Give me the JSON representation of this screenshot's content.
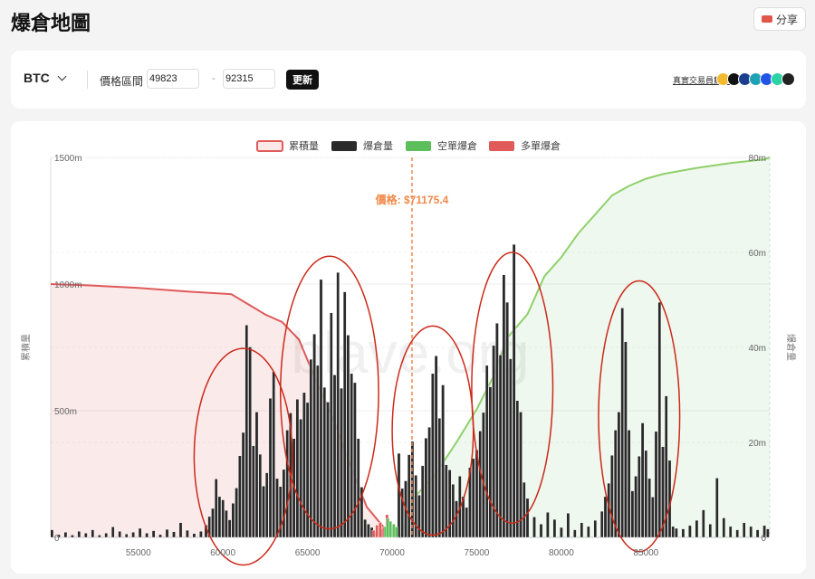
{
  "header": {
    "title": "爆倉地圖",
    "share_label": "分享"
  },
  "controls": {
    "asset": "BTC",
    "range_label": "價格區間",
    "range_low": "49823",
    "range_high": "92315",
    "separator": "-",
    "update_label": "更新",
    "real_data_label": "真實交易員數據",
    "exchanges": [
      {
        "name": "binance-icon",
        "color": "#f3ba2f"
      },
      {
        "name": "okx-icon",
        "color": "#111111"
      },
      {
        "name": "bybit-icon",
        "color": "#1b3f8f"
      },
      {
        "name": "bitget-icon",
        "color": "#1da2b4"
      },
      {
        "name": "gate-icon",
        "color": "#2354e6"
      },
      {
        "name": "hyperliquid-icon",
        "color": "#2bd2a4"
      },
      {
        "name": "bitmex-icon",
        "color": "#222222"
      }
    ]
  },
  "colors": {
    "cumulative": "#e05a5a",
    "liquidation": "#2a2a2a",
    "short": "#5cbf5c",
    "long": "#e05a5a",
    "price": "#f08a4b",
    "annotation": "#cc2a1a"
  },
  "chart_data": {
    "type": "bar",
    "legend": [
      "累積量",
      "爆倉量",
      "空單爆倉",
      "多單爆倉"
    ],
    "legend_position": "top-center",
    "xlim": [
      49823,
      92315
    ],
    "x_ticks": [
      55000,
      60000,
      65000,
      70000,
      75000,
      80000,
      85000
    ],
    "left_axis": {
      "label": "累積量",
      "ylim": [
        0,
        1500
      ],
      "ticks": [
        0,
        500,
        1000,
        1500
      ],
      "tick_labels": [
        "0",
        "500m",
        "1000m",
        "1500m"
      ]
    },
    "right_axis": {
      "label": "爆倉量",
      "ylim": [
        0,
        80
      ],
      "ticks": [
        0,
        20,
        40,
        60,
        80
      ],
      "tick_labels": [
        "0",
        "20m",
        "40m",
        "60m",
        "80m"
      ]
    },
    "current_price": 71175.4,
    "price_label": "價格: $71175.4",
    "watermark": "blave.org",
    "cumulative_long": [
      [
        49823,
        1000
      ],
      [
        52000,
        995
      ],
      [
        55000,
        985
      ],
      [
        58000,
        970
      ],
      [
        60500,
        960
      ],
      [
        61500,
        920
      ],
      [
        62500,
        880
      ],
      [
        63500,
        850
      ],
      [
        64500,
        780
      ],
      [
        65500,
        620
      ],
      [
        66500,
        470
      ],
      [
        67500,
        290
      ],
      [
        68500,
        120
      ],
      [
        69500,
        40
      ],
      [
        70300,
        8
      ],
      [
        70500,
        0
      ]
    ],
    "cumulative_short": [
      [
        70500,
        0
      ],
      [
        71200,
        8
      ],
      [
        72500,
        13
      ],
      [
        73800,
        20
      ],
      [
        75000,
        27
      ],
      [
        76000,
        34
      ],
      [
        76800,
        42
      ],
      [
        78000,
        47
      ],
      [
        79000,
        55
      ],
      [
        80000,
        59
      ],
      [
        81000,
        64
      ],
      [
        82000,
        68
      ],
      [
        83000,
        72
      ],
      [
        84000,
        74
      ],
      [
        85000,
        75.5
      ],
      [
        86000,
        76.5
      ],
      [
        88000,
        77.8
      ],
      [
        90000,
        78.8
      ],
      [
        92000,
        79.6
      ],
      [
        92315,
        80
      ]
    ],
    "liquidation_bars": [
      [
        49900,
        1.6
      ],
      [
        50300,
        0.6
      ],
      [
        50700,
        1.1
      ],
      [
        51100,
        0.5
      ],
      [
        51500,
        1.3
      ],
      [
        51900,
        0.9
      ],
      [
        52300,
        1.6
      ],
      [
        52700,
        0.5
      ],
      [
        53100,
        0.9
      ],
      [
        53500,
        2.2
      ],
      [
        53900,
        1.3
      ],
      [
        54300,
        0.7
      ],
      [
        54700,
        1.1
      ],
      [
        55100,
        1.9
      ],
      [
        55500,
        0.9
      ],
      [
        55900,
        1.4
      ],
      [
        56300,
        0.6
      ],
      [
        56700,
        1.7
      ],
      [
        57100,
        1.2
      ],
      [
        57500,
        3.1
      ],
      [
        57900,
        1.5
      ],
      [
        58300,
        0.8
      ],
      [
        58700,
        1.3
      ],
      [
        59000,
        2.6
      ],
      [
        59200,
        4.4
      ],
      [
        59400,
        6.1
      ],
      [
        59600,
        12.3
      ],
      [
        59800,
        8.6
      ],
      [
        60000,
        7.9
      ],
      [
        60200,
        5.7
      ],
      [
        60400,
        3.7
      ],
      [
        60600,
        7.2
      ],
      [
        60800,
        10.4
      ],
      [
        61000,
        17.2
      ],
      [
        61200,
        22.1
      ],
      [
        61400,
        44.7
      ],
      [
        61600,
        40.1
      ],
      [
        61800,
        19.3
      ],
      [
        62000,
        26.4
      ],
      [
        62200,
        17.5
      ],
      [
        62400,
        10.8
      ],
      [
        62600,
        13.6
      ],
      [
        62800,
        29.3
      ],
      [
        63000,
        34.9
      ],
      [
        63200,
        12.4
      ],
      [
        63400,
        10.7
      ],
      [
        63600,
        14.3
      ],
      [
        63800,
        22.6
      ],
      [
        64000,
        26.2
      ],
      [
        64200,
        20.8
      ],
      [
        64400,
        29.1
      ],
      [
        64600,
        24.9
      ],
      [
        64800,
        30.5
      ],
      [
        65000,
        28.4
      ],
      [
        65200,
        37.5
      ],
      [
        65400,
        42.8
      ],
      [
        65600,
        36.2
      ],
      [
        65800,
        54.3
      ],
      [
        66000,
        31.6
      ],
      [
        66200,
        28.5
      ],
      [
        66400,
        47.3
      ],
      [
        66600,
        34.2
      ],
      [
        66800,
        55.8
      ],
      [
        67000,
        31.4
      ],
      [
        67200,
        51.7
      ],
      [
        67400,
        42.6
      ],
      [
        67600,
        34.5
      ],
      [
        67800,
        32.6
      ],
      [
        68000,
        20.8
      ],
      [
        68200,
        10.6
      ],
      [
        68400,
        3.8
      ],
      [
        68600,
        2.8
      ],
      [
        68800,
        2.1
      ],
      [
        69000,
        1.1
      ],
      [
        69400,
        1.8
      ],
      [
        70400,
        17.7
      ],
      [
        70600,
        10.3
      ],
      [
        70800,
        11.9
      ],
      [
        71000,
        17.4
      ],
      [
        71200,
        20.2
      ],
      [
        71400,
        13.1
      ],
      [
        71600,
        8.9
      ],
      [
        71800,
        15.1
      ],
      [
        72000,
        20.9
      ],
      [
        72200,
        23.2
      ],
      [
        72400,
        34.5
      ],
      [
        72600,
        38.2
      ],
      [
        72800,
        25.1
      ],
      [
        73000,
        32.1
      ],
      [
        73200,
        15.3
      ],
      [
        73400,
        14.2
      ],
      [
        73600,
        11.2
      ],
      [
        73800,
        7.7
      ],
      [
        74000,
        12.9
      ],
      [
        74200,
        8.6
      ],
      [
        74400,
        6.3
      ],
      [
        74600,
        14.7
      ],
      [
        74800,
        16.6
      ],
      [
        75000,
        18.4
      ],
      [
        75200,
        22.4
      ],
      [
        75400,
        26.3
      ],
      [
        75600,
        36.2
      ],
      [
        75800,
        31.7
      ],
      [
        76000,
        40.4
      ],
      [
        76200,
        45.1
      ],
      [
        76400,
        38.4
      ],
      [
        76600,
        55.3
      ],
      [
        76800,
        49.5
      ],
      [
        77000,
        37.6
      ],
      [
        77200,
        61.7
      ],
      [
        77400,
        28.8
      ],
      [
        77600,
        26.4
      ],
      [
        77800,
        11.6
      ],
      [
        78000,
        8.2
      ],
      [
        78400,
        4.3
      ],
      [
        78800,
        2.8
      ],
      [
        79200,
        5.3
      ],
      [
        79600,
        3.8
      ],
      [
        80000,
        2.1
      ],
      [
        80400,
        5.1
      ],
      [
        80800,
        1.6
      ],
      [
        81200,
        3.1
      ],
      [
        81600,
        2.3
      ],
      [
        82000,
        3.6
      ],
      [
        82400,
        5.5
      ],
      [
        82600,
        8.6
      ],
      [
        82800,
        11.4
      ],
      [
        83000,
        17.3
      ],
      [
        83200,
        22.6
      ],
      [
        83400,
        26.4
      ],
      [
        83600,
        48.3
      ],
      [
        83800,
        41.2
      ],
      [
        84000,
        22.6
      ],
      [
        84200,
        9.8
      ],
      [
        84400,
        12.9
      ],
      [
        84600,
        17.1
      ],
      [
        84800,
        24.1
      ],
      [
        85000,
        18.3
      ],
      [
        85200,
        12.4
      ],
      [
        85400,
        8.5
      ],
      [
        85600,
        22.3
      ],
      [
        85800,
        49.5
      ],
      [
        86000,
        19.1
      ],
      [
        86200,
        29.8
      ],
      [
        86400,
        16.2
      ],
      [
        86600,
        2.3
      ],
      [
        86800,
        1.9
      ],
      [
        87200,
        1.8
      ],
      [
        87600,
        2.5
      ],
      [
        88000,
        3.6
      ],
      [
        88400,
        5.8
      ],
      [
        88800,
        2.8
      ],
      [
        89200,
        12.5
      ],
      [
        89600,
        4.1
      ],
      [
        90000,
        2.3
      ],
      [
        90400,
        1.6
      ],
      [
        90800,
        3.1
      ],
      [
        91200,
        2.3
      ],
      [
        91600,
        1.6
      ],
      [
        92000,
        2.5
      ],
      [
        92200,
        1.8
      ]
    ],
    "short_bars": [
      [
        69600,
        2.3
      ],
      [
        69750,
        4.0
      ],
      [
        69900,
        3.4
      ],
      [
        70100,
        2.8
      ],
      [
        70250,
        2.2
      ]
    ],
    "long_bars": [
      [
        68900,
        1.5
      ],
      [
        69100,
        2.6
      ],
      [
        69300,
        3.2
      ],
      [
        69500,
        2.2
      ],
      [
        69700,
        4.8
      ],
      [
        69850,
        3.1
      ],
      [
        70000,
        2.0
      ]
    ],
    "annotations": [
      {
        "label": "cluster-60k",
        "cx": 61200,
        "cy": 17.0,
        "rx": 2900,
        "ry": 22.8
      },
      {
        "label": "cluster-66k",
        "cx": 66300,
        "cy": 30.5,
        "rx": 2900,
        "ry": 28.7
      },
      {
        "label": "cluster-72k",
        "cx": 72400,
        "cy": 22.5,
        "rx": 2400,
        "ry": 22.0
      },
      {
        "label": "cluster-77k",
        "cx": 77100,
        "cy": 31.5,
        "rx": 2400,
        "ry": 28.5
      },
      {
        "label": "cluster-84k",
        "cx": 84600,
        "cy": 25.5,
        "rx": 2400,
        "ry": 28.5
      }
    ]
  }
}
